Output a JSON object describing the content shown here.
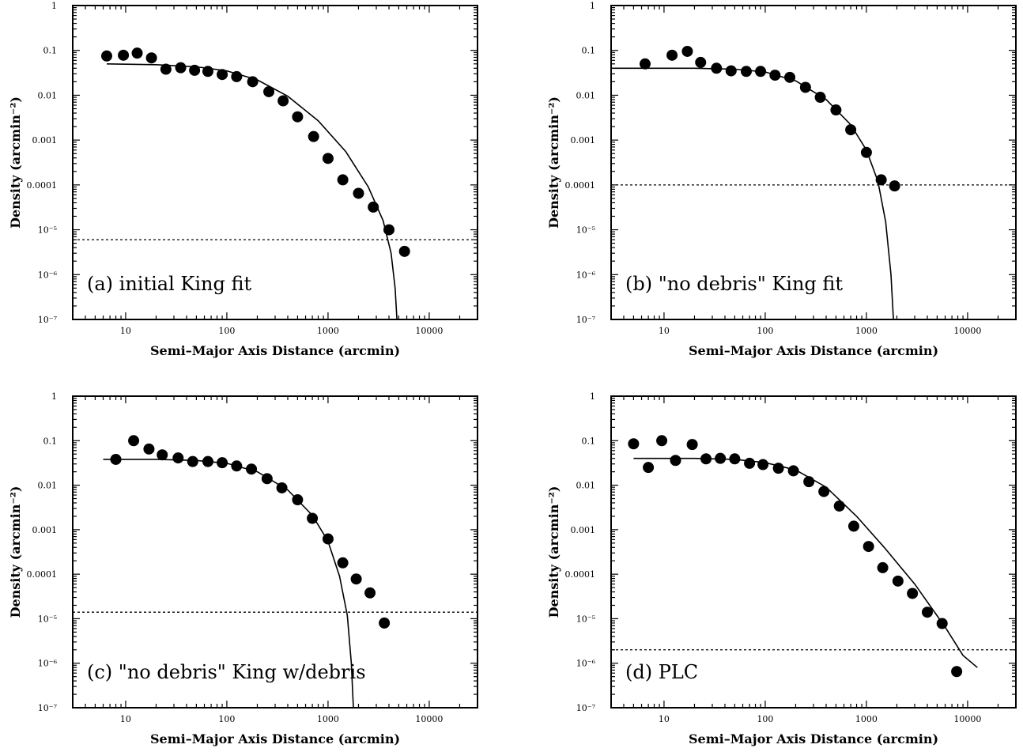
{
  "chart_data": [
    {
      "type": "scatter",
      "label": "(a) initial King fit",
      "xlabel": "Semi–Major Axis Distance (arcmin)",
      "ylabel": "Density (arcmin⁻²)",
      "xscale": "log",
      "yscale": "log",
      "xlim": [
        3,
        30000
      ],
      "ylim": [
        1e-07,
        1
      ],
      "x_ticks": [
        10,
        100,
        1000,
        10000
      ],
      "x_tick_labels": [
        "10",
        "100",
        "1000",
        "10000"
      ],
      "y_ticks": [
        1e-07,
        1e-06,
        1e-05,
        0.0001,
        0.001,
        0.01,
        0.1,
        1
      ],
      "y_tick_labels": [
        "10⁻⁷",
        "10⁻⁶",
        "10⁻⁵",
        "0.0001",
        "0.001",
        "0.01",
        "0.1",
        "1"
      ],
      "points": {
        "x": [
          6.5,
          9.5,
          13,
          18,
          25,
          35,
          48,
          65,
          90,
          125,
          180,
          260,
          360,
          500,
          720,
          1000,
          1400,
          2000,
          2800,
          4000,
          5700
        ],
        "y": [
          0.075,
          0.078,
          0.087,
          0.068,
          0.038,
          0.041,
          0.036,
          0.034,
          0.029,
          0.026,
          0.02,
          0.012,
          0.0075,
          0.0033,
          0.0012,
          0.00039,
          0.00013,
          6.5e-05,
          3.2e-05,
          1e-05,
          3.3e-06
        ]
      },
      "fit_curve": {
        "x": [
          6.5,
          20,
          50,
          100,
          200,
          400,
          800,
          1500,
          2500,
          3500,
          4200,
          4600,
          4800
        ],
        "y": [
          0.05,
          0.048,
          0.043,
          0.035,
          0.022,
          0.0095,
          0.0027,
          0.00055,
          9e-05,
          1.6e-05,
          3e-06,
          5e-07,
          1e-07
        ]
      },
      "background_level": 6e-06
    },
    {
      "type": "scatter",
      "label": "(b) \"no debris\" King fit",
      "xlabel": "Semi–Major Axis Distance (arcmin)",
      "ylabel": "Density (arcmin⁻²)",
      "xscale": "log",
      "yscale": "log",
      "xlim": [
        3,
        30000
      ],
      "ylim": [
        1e-07,
        1
      ],
      "x_ticks": [
        10,
        100,
        1000,
        10000
      ],
      "x_tick_labels": [
        "10",
        "100",
        "1000",
        "10000"
      ],
      "y_ticks": [
        1e-07,
        1e-06,
        1e-05,
        0.0001,
        0.001,
        0.01,
        0.1,
        1
      ],
      "y_tick_labels": [
        "10⁻⁷",
        "10⁻⁶",
        "10⁻⁵",
        "0.0001",
        "0.001",
        "0.01",
        "0.1",
        "1"
      ],
      "points": {
        "x": [
          6.5,
          12,
          17,
          23,
          33,
          46,
          65,
          90,
          125,
          175,
          250,
          350,
          500,
          700,
          1000,
          1400,
          1900
        ],
        "y": [
          0.05,
          0.078,
          0.095,
          0.054,
          0.04,
          0.035,
          0.034,
          0.034,
          0.028,
          0.025,
          0.015,
          0.009,
          0.0047,
          0.0017,
          0.00053,
          0.00013,
          9.5e-05
        ]
      },
      "fit_curve": {
        "x": [
          3,
          20,
          50,
          100,
          200,
          400,
          700,
          1000,
          1300,
          1550,
          1750,
          1850
        ],
        "y": [
          0.04,
          0.04,
          0.038,
          0.033,
          0.021,
          0.008,
          0.0022,
          0.0006,
          0.00012,
          1.5e-05,
          1e-06,
          1e-07
        ]
      },
      "background_level": 0.0001
    },
    {
      "type": "scatter",
      "label": "(c) \"no debris\" King w/debris",
      "xlabel": "Semi–Major Axis Distance (arcmin)",
      "ylabel": "Density (arcmin⁻²)",
      "xscale": "log",
      "yscale": "log",
      "xlim": [
        3,
        30000
      ],
      "ylim": [
        1e-07,
        1
      ],
      "x_ticks": [
        10,
        100,
        1000,
        10000
      ],
      "x_tick_labels": [
        "10",
        "100",
        "1000",
        "10000"
      ],
      "y_ticks": [
        1e-07,
        1e-06,
        1e-05,
        0.0001,
        0.001,
        0.01,
        0.1,
        1
      ],
      "y_tick_labels": [
        "10⁻⁷",
        "10⁻⁶",
        "10⁻⁵",
        "0.0001",
        "0.001",
        "0.01",
        "0.1",
        "1"
      ],
      "points": {
        "x": [
          8,
          12,
          17,
          23,
          33,
          46,
          65,
          90,
          125,
          175,
          250,
          350,
          500,
          700,
          1000,
          1400,
          1900,
          2600,
          3600
        ],
        "y": [
          0.038,
          0.1,
          0.065,
          0.048,
          0.041,
          0.034,
          0.034,
          0.032,
          0.027,
          0.023,
          0.014,
          0.0087,
          0.0047,
          0.0018,
          0.00062,
          0.00018,
          7.8e-05,
          3.8e-05,
          8e-06
        ]
      },
      "fit_curve": {
        "x": [
          6,
          20,
          50,
          100,
          200,
          400,
          700,
          1000,
          1300,
          1550,
          1700,
          1780
        ],
        "y": [
          0.038,
          0.038,
          0.036,
          0.031,
          0.02,
          0.0078,
          0.0021,
          0.00055,
          9e-05,
          1.2e-05,
          1e-06,
          1e-07
        ]
      },
      "background_level": 1.4e-05
    },
    {
      "type": "scatter",
      "label": "(d) PLC",
      "xlabel": "Semi–Major Axis Distance (arcmin)",
      "ylabel": "Density (arcmin⁻²)",
      "xscale": "log",
      "yscale": "log",
      "xlim": [
        3,
        30000
      ],
      "ylim": [
        1e-07,
        1
      ],
      "x_ticks": [
        10,
        100,
        1000,
        10000
      ],
      "x_tick_labels": [
        "10",
        "100",
        "1000",
        "10000"
      ],
      "y_ticks": [
        1e-07,
        1e-06,
        1e-05,
        0.0001,
        0.001,
        0.01,
        0.1,
        1
      ],
      "y_tick_labels": [
        "10⁻⁷",
        "10⁻⁶",
        "10⁻⁵",
        "0.0001",
        "0.001",
        "0.01",
        "0.1",
        "1"
      ],
      "points": {
        "x": [
          5,
          7,
          9.5,
          13,
          19,
          26,
          36,
          50,
          70,
          95,
          135,
          190,
          270,
          380,
          540,
          750,
          1050,
          1450,
          2050,
          2850,
          4000,
          5600,
          7800
        ],
        "y": [
          0.085,
          0.025,
          0.1,
          0.036,
          0.082,
          0.039,
          0.04,
          0.039,
          0.031,
          0.029,
          0.024,
          0.021,
          0.012,
          0.0072,
          0.0034,
          0.0012,
          0.00042,
          0.00014,
          7e-05,
          3.7e-05,
          1.4e-05,
          7.8e-06,
          6.5e-07
        ]
      },
      "fit_curve": {
        "x": [
          5,
          20,
          50,
          100,
          200,
          400,
          800,
          1500,
          3000,
          6000,
          9000,
          12500
        ],
        "y": [
          0.04,
          0.04,
          0.038,
          0.032,
          0.022,
          0.009,
          0.002,
          0.0004,
          6e-05,
          6.5e-06,
          1.5e-06,
          8e-07
        ]
      },
      "background_level": 2e-06
    }
  ]
}
